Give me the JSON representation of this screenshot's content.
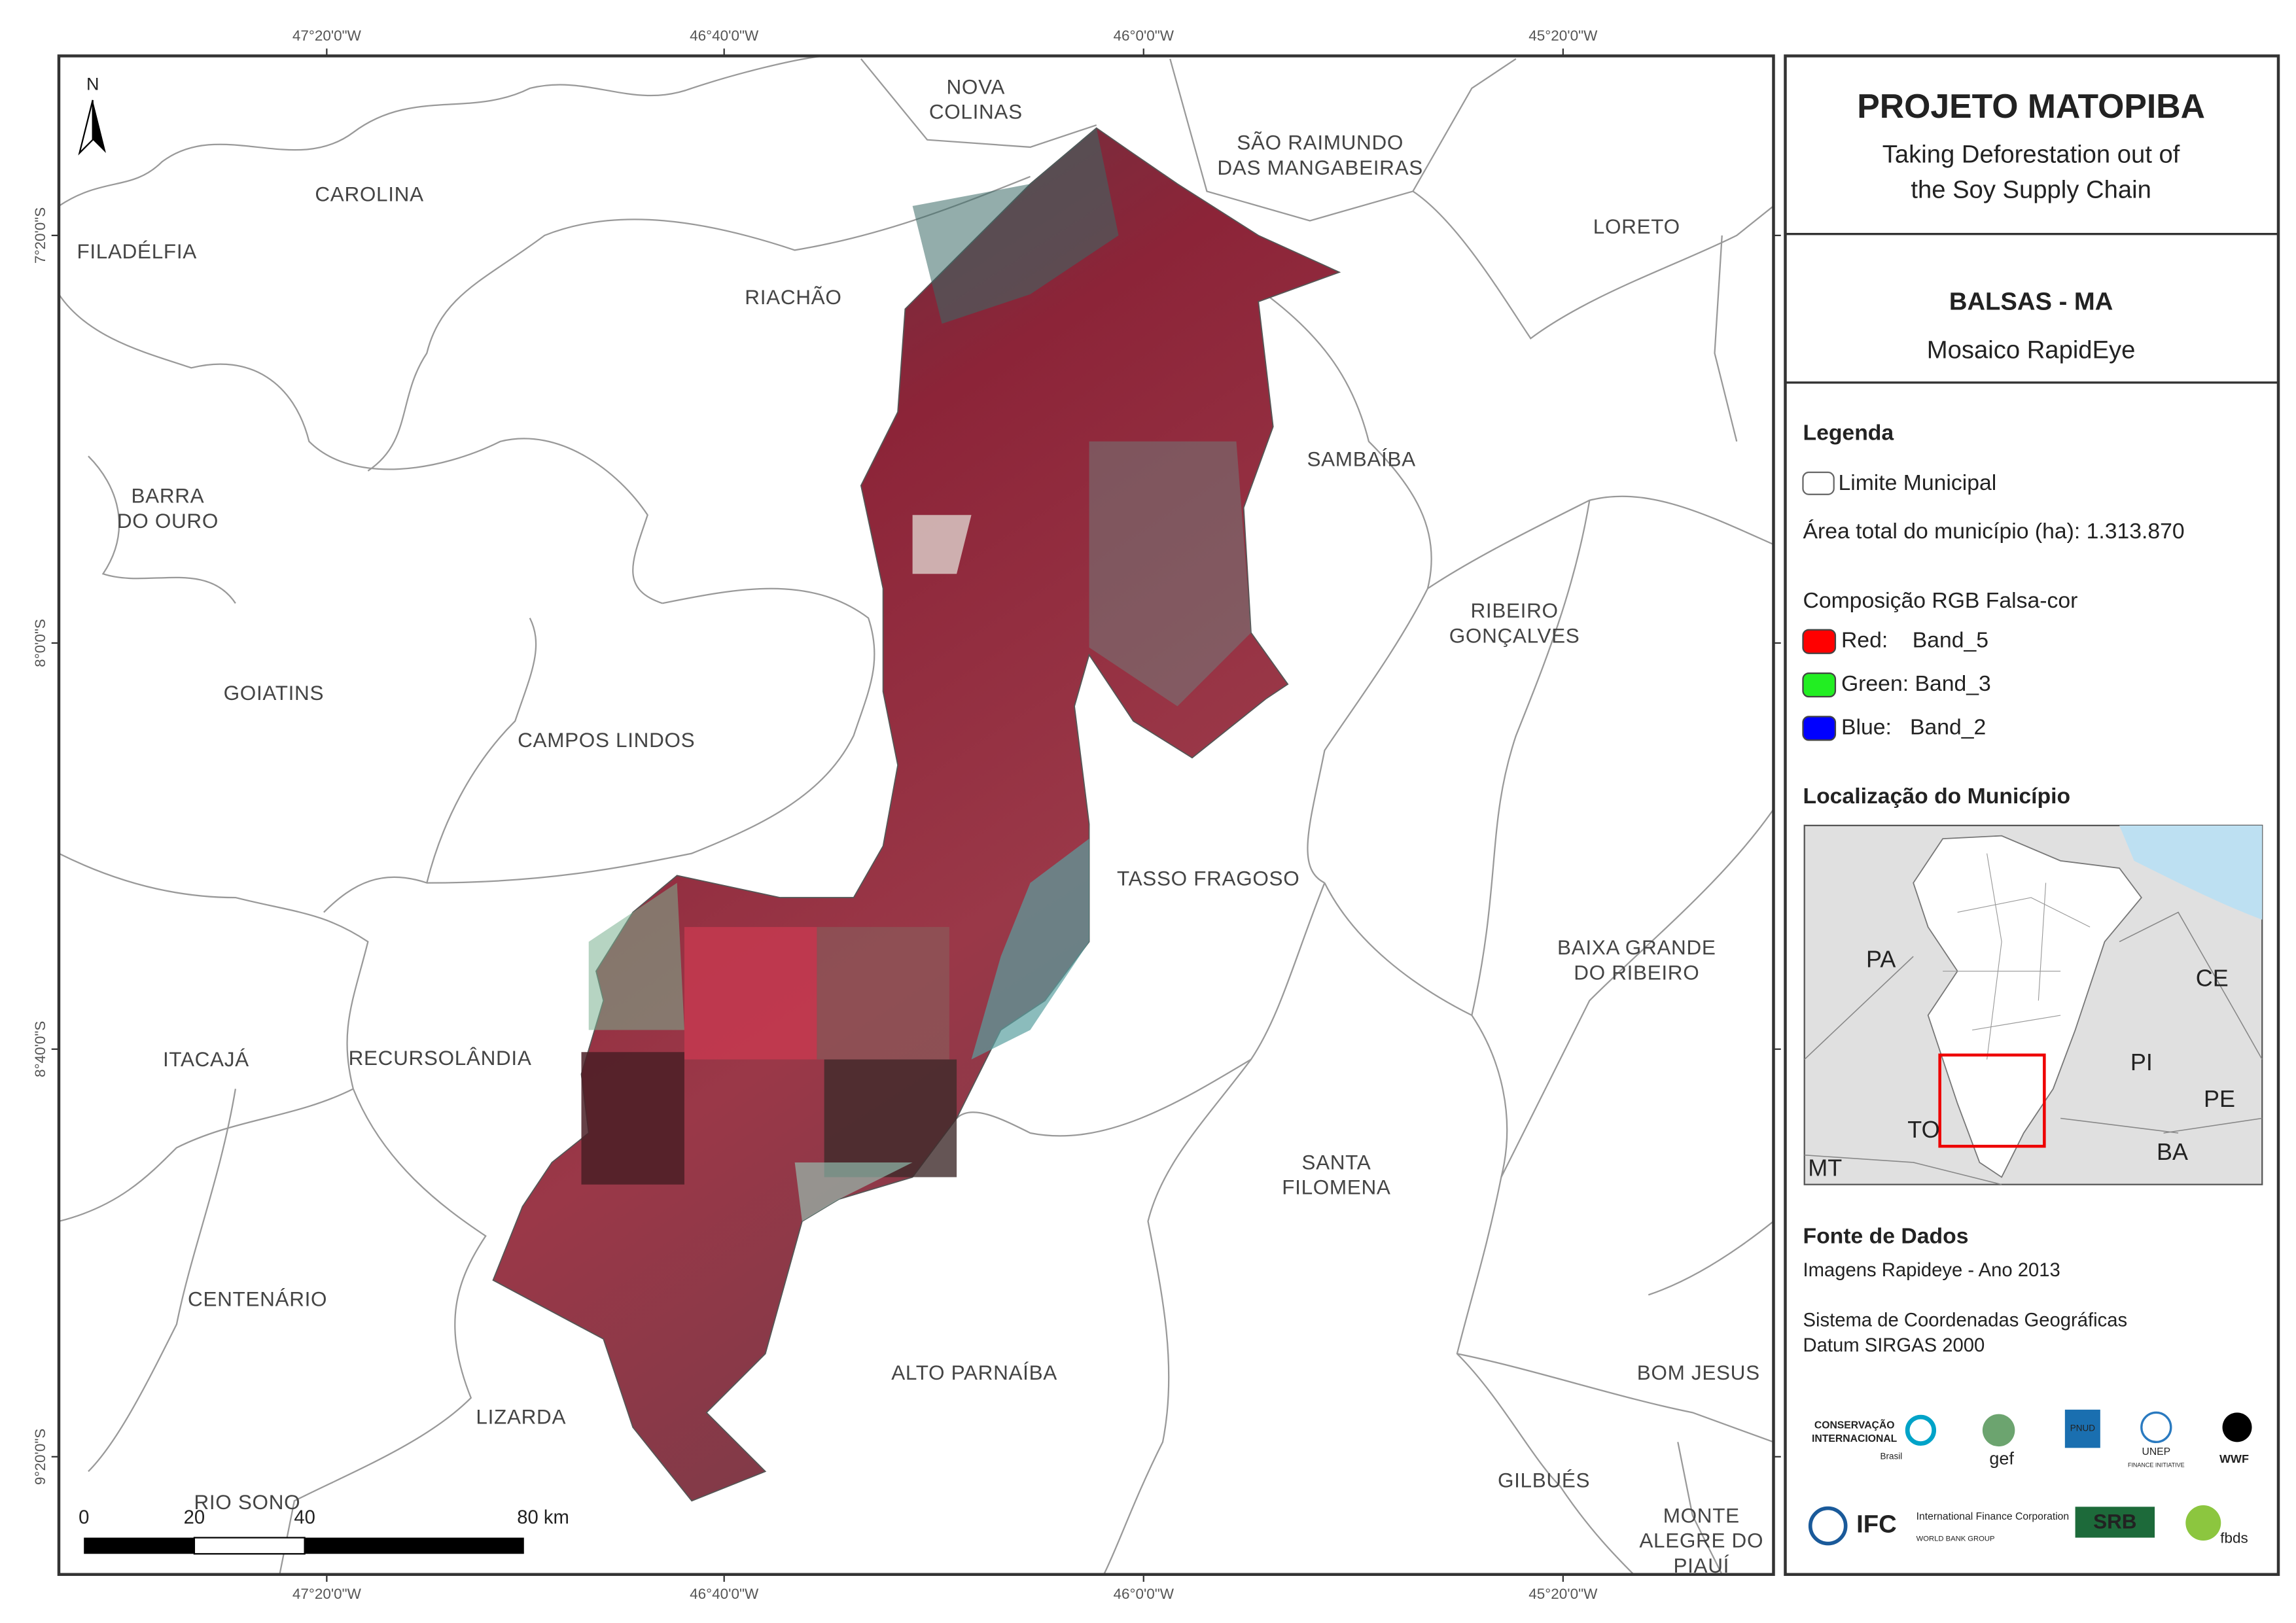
{
  "header": {
    "title": "PROJETO MATOPIBA",
    "subtitle_lines": [
      "Taking Deforestation out of",
      "the Soy Supply Chain"
    ]
  },
  "municipality": {
    "name": "BALSAS - MA",
    "product": "Mosaico RapidEye"
  },
  "legend": {
    "title": "Legenda",
    "boundary": "Limite Municipal",
    "area": "Área total do município (ha): 1.313.870",
    "composition_title": "Composição RGB Falsa-cor",
    "bands": [
      {
        "label": "Red:    Band_5",
        "color": "#ff0000"
      },
      {
        "label": "Green: Band_3",
        "color": "#22ee22"
      },
      {
        "label": "Blue:   Band_2",
        "color": "#0000ff"
      }
    ]
  },
  "location": {
    "title": "Localização do Município",
    "states": [
      "PA",
      "CE",
      "PI",
      "PE",
      "TO",
      "BA",
      "MT"
    ]
  },
  "sources": {
    "title": "Fonte de Dados",
    "lines": [
      "Imagens Rapideye - Ano 2013",
      "Sistema de Coordenadas Geográficas",
      "Datum SIRGAS 2000"
    ]
  },
  "logos": [
    "CONSERVAÇÃO",
    "INTERNACIONAL",
    "Brasil",
    "gef",
    "PNUD",
    "UNEP",
    "FINANCE INITIATIVE",
    "WWF",
    "IFC",
    "International Finance Corporation",
    "WORLD BANK GROUP",
    "SRB",
    "fbds"
  ],
  "map": {
    "north": "N",
    "graticule": {
      "lon": [
        "47°20'0\"W",
        "46°40'0\"W",
        "46°0'0\"W",
        "45°20'0\"W"
      ],
      "lat": [
        "7°20'0\"S",
        "8°0'0\"S",
        "8°40'0\"S",
        "9°20'0\"S"
      ]
    },
    "municipalities": [
      {
        "lines": [
          "NOVA",
          "COLINAS"
        ]
      },
      {
        "lines": [
          "SÃO RAIMUNDO",
          "DAS MANGABEIRAS"
        ]
      },
      {
        "lines": [
          "CAROLINA"
        ]
      },
      {
        "lines": [
          "FILADÉLFIA"
        ]
      },
      {
        "lines": [
          "RIACHÃO"
        ]
      },
      {
        "lines": [
          "LORETO"
        ]
      },
      {
        "lines": [
          "SAMBAÍBA"
        ]
      },
      {
        "lines": [
          "BARRA",
          "DO OURO"
        ]
      },
      {
        "lines": [
          "RIBEIRO",
          "GONÇALVES"
        ]
      },
      {
        "lines": [
          "GOIATINS"
        ]
      },
      {
        "lines": [
          "CAMPOS LINDOS"
        ]
      },
      {
        "lines": [
          "TASSO FRAGOSO"
        ]
      },
      {
        "lines": [
          "BAIXA GRANDE",
          "DO RIBEIRO"
        ]
      },
      {
        "lines": [
          "ITACAJÁ"
        ]
      },
      {
        "lines": [
          "RECURSOLÂNDIA"
        ]
      },
      {
        "lines": [
          "SANTA",
          "FILOMENA"
        ]
      },
      {
        "lines": [
          "CENTENÁRIO"
        ]
      },
      {
        "lines": [
          "ALTO PARNAÍBA"
        ]
      },
      {
        "lines": [
          "BOM JESUS"
        ]
      },
      {
        "lines": [
          "LIZARDA"
        ]
      },
      {
        "lines": [
          "GILBUÉS"
        ]
      },
      {
        "lines": [
          "RIO SONO"
        ]
      },
      {
        "lines": [
          "MONTE",
          "ALEGRE DO",
          "PIAUÍ"
        ]
      }
    ],
    "scale_bar": [
      "0",
      "20",
      "40",
      "80 km"
    ]
  }
}
